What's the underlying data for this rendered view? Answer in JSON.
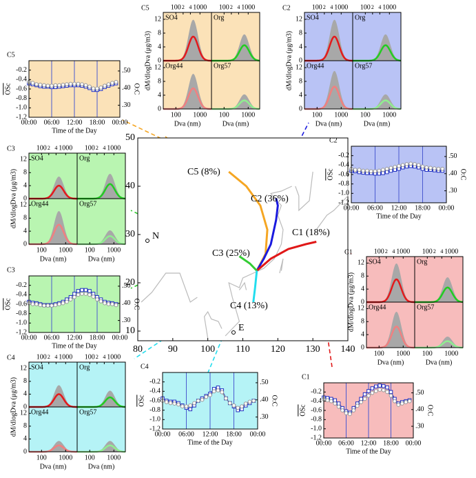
{
  "chart_data": [
    {
      "type": "map",
      "xlim": [
        80,
        140
      ],
      "ylim": [
        8,
        50
      ],
      "xticks": [
        80,
        90,
        100,
        110,
        120,
        130,
        140
      ],
      "yticks": [
        10,
        20,
        30,
        40,
        50
      ],
      "series": [
        {
          "name": "C5 (8%)",
          "color": "#f5a623",
          "x": [
            114,
            116.5,
            117,
            115,
            111,
            106
          ],
          "y": [
            22.5,
            26,
            31,
            36,
            40,
            43
          ]
        },
        {
          "name": "C2 (36%)",
          "color": "#1a1adf",
          "x": [
            114,
            116,
            118,
            119.5,
            120,
            119.5
          ],
          "y": [
            22.5,
            25,
            28,
            33,
            36,
            37.5
          ]
        },
        {
          "name": "C1 (18%)",
          "color": "#e01818",
          "x": [
            114,
            118,
            123,
            128,
            131
          ],
          "y": [
            22.5,
            25,
            27,
            28,
            28.5
          ]
        },
        {
          "name": "C3 (25%)",
          "color": "#33cc33",
          "x": [
            114,
            112,
            109
          ],
          "y": [
            22.5,
            24,
            25.5
          ]
        },
        {
          "name": "C4 (13%)",
          "color": "#22ddee",
          "x": [
            114,
            113.5,
            113
          ],
          "y": [
            22.5,
            19,
            16
          ]
        }
      ],
      "annotations": [
        "N",
        "E"
      ]
    },
    {
      "type": "size_distribution",
      "title": "C5",
      "background": "#fbe2b8",
      "xlabel": "Dva (nm)",
      "ylabel": "dM/dlogDva (μg/m3)",
      "log_x": true,
      "xlim": [
        30,
        3000
      ],
      "xticks": [
        100,
        1000
      ],
      "top_ticks": [
        100,
        {
          "value": 200,
          "label": "2"
        },
        {
          "value": 400,
          "label": "4"
        },
        1000
      ],
      "ylim": [
        0,
        14
      ],
      "yticks": [
        0,
        4,
        8,
        12
      ],
      "series": [
        {
          "name": "SO4",
          "color": "#e31a1c",
          "peak": 7
        },
        {
          "name": "Org",
          "color": "#22cc22",
          "peak": 4.5
        },
        {
          "name": "Org44",
          "color": "#f08080",
          "peak": 6
        },
        {
          "name": "Org57",
          "color": "#90ee90",
          "peak": 2.5
        }
      ]
    },
    {
      "type": "line",
      "title": "C5",
      "background": "#fbe2b8",
      "xlabel": "Time of the Day",
      "ylabel": "OSc",
      "y2label": "O:C",
      "x": [
        0,
        1,
        2,
        3,
        4,
        5,
        6,
        7,
        8,
        9,
        10,
        11,
        12,
        13,
        14,
        15,
        16,
        17,
        18,
        19,
        20,
        21,
        22,
        23
      ],
      "xlim": [
        0,
        24
      ],
      "xticks": [
        {
          "value": 0,
          "label": "00:00"
        },
        {
          "value": 6,
          "label": "06:00"
        },
        {
          "value": 12,
          "label": "12:00"
        },
        {
          "value": 18,
          "label": "18:00"
        },
        {
          "value": 24,
          "label": "00:00"
        }
      ],
      "ylim": [
        -1.2,
        0
      ],
      "yticks": [
        -1.2,
        {
          "value": -1,
          "label": "-1.0"
        },
        -0.8,
        -0.6,
        -0.4,
        -0.2
      ],
      "y2lim": [
        0.23,
        0.56
      ],
      "y2ticks": [
        {
          "value": 0.3,
          "label": ".30"
        },
        {
          "value": 0.4,
          "label": ".40"
        },
        {
          "value": 0.5,
          "label": ".50"
        }
      ],
      "series": [
        {
          "color": "#1f2fbf",
          "marker": "square",
          "values": [
            -0.48,
            -0.5,
            -0.52,
            -0.54,
            -0.55,
            -0.55,
            -0.56,
            -0.56,
            -0.55,
            -0.54,
            -0.53,
            -0.52,
            -0.52,
            -0.52,
            -0.53,
            -0.55,
            -0.58,
            -0.62,
            -0.62,
            -0.6,
            -0.56,
            -0.53,
            -0.5,
            -0.48
          ]
        },
        {
          "color": "#999999",
          "marker": "circle",
          "values": [
            -0.45,
            -0.47,
            -0.5,
            -0.51,
            -0.52,
            -0.53,
            -0.53,
            -0.52,
            -0.52,
            -0.51,
            -0.5,
            -0.49,
            -0.49,
            -0.49,
            -0.5,
            -0.52,
            -0.55,
            -0.59,
            -0.59,
            -0.57,
            -0.53,
            -0.5,
            -0.47,
            -0.45
          ]
        }
      ]
    },
    {
      "type": "size_distribution",
      "title": "C2",
      "background": "#b9c3f5",
      "xlabel": "Dva (nm)",
      "ylabel": "dM/dlogDva (μg/m3)",
      "log_x": true,
      "xlim": [
        30,
        3000
      ],
      "xticks": [
        100,
        1000
      ],
      "top_ticks": [
        100,
        {
          "value": 200,
          "label": "2"
        },
        {
          "value": 400,
          "label": "4"
        },
        1000
      ],
      "ylim": [
        0,
        14
      ],
      "yticks": [
        0,
        4,
        8,
        12
      ],
      "series": [
        {
          "name": "SO4",
          "color": "#e31a1c",
          "peak": 7
        },
        {
          "name": "Org",
          "color": "#22cc22",
          "peak": 4.5
        },
        {
          "name": "Org44",
          "color": "#f08080",
          "peak": 6.5
        },
        {
          "name": "Org57",
          "color": "#90ee90",
          "peak": 2.5
        }
      ]
    },
    {
      "type": "line",
      "title": "C2",
      "background": "#b9c3f5",
      "xlabel": "Time of the Day",
      "ylabel": "OSc",
      "y2label": "O:C",
      "x": [
        0,
        1,
        2,
        3,
        4,
        5,
        6,
        7,
        8,
        9,
        10,
        11,
        12,
        13,
        14,
        15,
        16,
        17,
        18,
        19,
        20,
        21,
        22,
        23
      ],
      "xlim": [
        0,
        24
      ],
      "xticks": [
        {
          "value": 0,
          "label": "00:00"
        },
        {
          "value": 6,
          "label": "06:00"
        },
        {
          "value": 12,
          "label": "12:00"
        },
        {
          "value": 18,
          "label": "18:00"
        },
        {
          "value": 24,
          "label": "00:00"
        }
      ],
      "ylim": [
        -1.2,
        0
      ],
      "yticks": [
        -1.2,
        {
          "value": -1,
          "label": "-1.0"
        },
        -0.8,
        -0.6,
        -0.4,
        -0.2
      ],
      "y2lim": [
        0.23,
        0.56
      ],
      "y2ticks": [
        {
          "value": 0.3,
          "label": ".30"
        },
        {
          "value": 0.4,
          "label": ".40"
        },
        {
          "value": 0.5,
          "label": ".50"
        }
      ],
      "series": [
        {
          "color": "#1f2fbf",
          "marker": "square",
          "values": [
            -0.52,
            -0.53,
            -0.55,
            -0.56,
            -0.57,
            -0.57,
            -0.58,
            -0.58,
            -0.57,
            -0.55,
            -0.52,
            -0.5,
            -0.48,
            -0.45,
            -0.43,
            -0.42,
            -0.43,
            -0.45,
            -0.48,
            -0.5,
            -0.5,
            -0.51,
            -0.52,
            -0.52
          ]
        },
        {
          "color": "#999999",
          "marker": "circle",
          "values": [
            -0.48,
            -0.5,
            -0.5,
            -0.52,
            -0.52,
            -0.53,
            -0.53,
            -0.52,
            -0.5,
            -0.48,
            -0.46,
            -0.44,
            -0.42,
            -0.4,
            -0.38,
            -0.37,
            -0.38,
            -0.4,
            -0.43,
            -0.45,
            -0.46,
            -0.47,
            -0.48,
            -0.48
          ]
        }
      ]
    },
    {
      "type": "size_distribution",
      "title": "C3",
      "background": "#b9f5b1",
      "xlabel": "Dva (nm)",
      "ylabel": "dM/dlogDva (μg/m3)",
      "log_x": true,
      "xlim": [
        30,
        3000
      ],
      "xticks": [
        100,
        1000
      ],
      "top_ticks": [
        100,
        {
          "value": 200,
          "label": "2"
        },
        {
          "value": 400,
          "label": "4"
        },
        1000
      ],
      "ylim": [
        0,
        14
      ],
      "yticks": [
        0,
        4,
        8,
        12
      ],
      "series": [
        {
          "name": "SO4",
          "color": "#e31a1c",
          "peak": 4
        },
        {
          "name": "Org",
          "color": "#22cc22",
          "peak": 4.5
        },
        {
          "name": "Org44",
          "color": "#f08080",
          "peak": 6
        },
        {
          "name": "Org57",
          "color": "#90ee90",
          "peak": 2.5
        }
      ]
    },
    {
      "type": "line",
      "title": "C3",
      "background": "#b9f5b1",
      "xlabel": "Time of the Day",
      "ylabel": "OSc",
      "y2label": "O:C",
      "x": [
        0,
        1,
        2,
        3,
        4,
        5,
        6,
        7,
        8,
        9,
        10,
        11,
        12,
        13,
        14,
        15,
        16,
        17,
        18,
        19,
        20,
        21,
        22,
        23
      ],
      "xlim": [
        0,
        24
      ],
      "xticks": [
        {
          "value": 0,
          "label": "00:00"
        },
        {
          "value": 6,
          "label": "06:00"
        },
        {
          "value": 12,
          "label": "12:00"
        },
        {
          "value": 18,
          "label": "18:00"
        },
        {
          "value": 24,
          "label": "00:00"
        }
      ],
      "ylim": [
        -1.2,
        0
      ],
      "yticks": [
        -1.2,
        {
          "value": -1,
          "label": "-1.0"
        },
        -0.8,
        -0.6,
        -0.4,
        -0.2
      ],
      "y2lim": [
        0.23,
        0.56
      ],
      "y2ticks": [
        {
          "value": 0.3,
          "label": ".30"
        },
        {
          "value": 0.4,
          "label": ".40"
        },
        {
          "value": 0.5,
          "label": ".50"
        }
      ],
      "series": [
        {
          "color": "#1f2fbf",
          "marker": "square",
          "values": [
            -0.55,
            -0.57,
            -0.58,
            -0.6,
            -0.62,
            -0.62,
            -0.62,
            -0.6,
            -0.58,
            -0.55,
            -0.5,
            -0.45,
            -0.38,
            -0.32,
            -0.3,
            -0.3,
            -0.32,
            -0.38,
            -0.45,
            -0.5,
            -0.55,
            -0.57,
            -0.58,
            -0.6
          ]
        },
        {
          "color": "#999999",
          "marker": "circle",
          "values": [
            -0.58,
            -0.6,
            -0.6,
            -0.62,
            -0.63,
            -0.63,
            -0.63,
            -0.62,
            -0.6,
            -0.58,
            -0.55,
            -0.5,
            -0.45,
            -0.4,
            -0.38,
            -0.38,
            -0.4,
            -0.44,
            -0.5,
            -0.54,
            -0.58,
            -0.6,
            -0.6,
            -0.62
          ]
        }
      ]
    },
    {
      "type": "size_distribution",
      "title": "C1",
      "background": "#f7bcbc",
      "xlabel": "Dva (nm)",
      "ylabel": "dM/dlogDva (μg/m3)",
      "log_x": true,
      "xlim": [
        30,
        3000
      ],
      "xticks": [
        100,
        1000
      ],
      "top_ticks": [
        100,
        {
          "value": 200,
          "label": "2"
        },
        {
          "value": 400,
          "label": "4"
        },
        1000
      ],
      "ylim": [
        0,
        14
      ],
      "yticks": [
        0,
        4,
        8,
        12
      ],
      "series": [
        {
          "name": "SO4",
          "color": "#e31a1c",
          "peak": 7
        },
        {
          "name": "Org",
          "color": "#22cc22",
          "peak": 4.5
        },
        {
          "name": "Org44",
          "color": "#f08080",
          "peak": 6.5
        },
        {
          "name": "Org57",
          "color": "#90ee90",
          "peak": 2
        }
      ]
    },
    {
      "type": "line",
      "title": "C1",
      "background": "#f7bcbc",
      "xlabel": "Time of the Day",
      "ylabel": "OSc",
      "y2label": "O:C",
      "x": [
        0,
        1,
        2,
        3,
        4,
        5,
        6,
        7,
        8,
        9,
        10,
        11,
        12,
        13,
        14,
        15,
        16,
        17,
        18,
        19,
        20,
        21,
        22,
        23
      ],
      "xlim": [
        0,
        24
      ],
      "xticks": [
        {
          "value": 0,
          "label": "00:00"
        },
        {
          "value": 6,
          "label": "06:00"
        },
        {
          "value": 12,
          "label": "12:00"
        },
        {
          "value": 18,
          "label": "18:00"
        },
        {
          "value": 24,
          "label": "00:00"
        }
      ],
      "ylim": [
        -1.2,
        0
      ],
      "yticks": [
        -1.2,
        {
          "value": -1,
          "label": "-1.0"
        },
        -0.8,
        -0.6,
        -0.4,
        -0.2
      ],
      "y2lim": [
        0.23,
        0.56
      ],
      "y2ticks": [
        {
          "value": 0.3,
          "label": ".30"
        },
        {
          "value": 0.4,
          "label": ".40"
        },
        {
          "value": 0.5,
          "label": ".50"
        }
      ],
      "series": [
        {
          "color": "#1f2fbf",
          "marker": "square",
          "values": [
            -0.32,
            -0.33,
            -0.35,
            -0.38,
            -0.45,
            -0.55,
            -0.62,
            -0.65,
            -0.55,
            -0.45,
            -0.35,
            -0.25,
            -0.18,
            -0.12,
            -0.08,
            -0.06,
            -0.07,
            -0.1,
            -0.2,
            -0.35,
            -0.45,
            -0.42,
            -0.4,
            -0.38
          ]
        },
        {
          "color": "#999999",
          "marker": "circle",
          "values": [
            -0.36,
            -0.38,
            -0.4,
            -0.45,
            -0.52,
            -0.6,
            -0.66,
            -0.68,
            -0.6,
            -0.5,
            -0.42,
            -0.35,
            -0.28,
            -0.22,
            -0.18,
            -0.15,
            -0.16,
            -0.2,
            -0.28,
            -0.4,
            -0.48,
            -0.45,
            -0.42,
            -0.4
          ]
        }
      ]
    },
    {
      "type": "size_distribution",
      "title": "C4",
      "background": "#b5f3f6",
      "xlabel": "Dva (nm)",
      "ylabel": "dM/dlogDva (μg/m3)",
      "log_x": true,
      "xlim": [
        30,
        3000
      ],
      "xticks": [
        100,
        1000
      ],
      "top_ticks": [
        100,
        {
          "value": 200,
          "label": "2"
        },
        {
          "value": 400,
          "label": "4"
        },
        1000
      ],
      "ylim": [
        0,
        14
      ],
      "yticks": [
        0,
        4,
        8,
        12
      ],
      "series": [
        {
          "name": "SO4",
          "color": "#e31a1c",
          "peak": 4
        },
        {
          "name": "Org",
          "color": "#22cc22",
          "peak": 3
        },
        {
          "name": "Org44",
          "color": "#f08080",
          "peak": 2
        },
        {
          "name": "Org57",
          "color": "#90ee90",
          "peak": 2
        }
      ]
    },
    {
      "type": "line",
      "title": "C4",
      "background": "#b5f3f6",
      "xlabel": "Time of the Day",
      "ylabel": "OSc",
      "y2label": "O:C",
      "x": [
        0,
        1,
        2,
        3,
        4,
        5,
        6,
        7,
        8,
        9,
        10,
        11,
        12,
        13,
        14,
        15,
        16,
        17,
        18,
        19,
        20,
        21,
        22,
        23
      ],
      "xlim": [
        0,
        24
      ],
      "xticks": [
        {
          "value": 0,
          "label": "00:00"
        },
        {
          "value": 6,
          "label": "06:00"
        },
        {
          "value": 12,
          "label": "12:00"
        },
        {
          "value": 18,
          "label": "18:00"
        },
        {
          "value": 24,
          "label": "00:00"
        }
      ],
      "ylim": [
        -1.2,
        0
      ],
      "yticks": [
        -1.2,
        {
          "value": -1,
          "label": "-1.0"
        },
        -0.8,
        -0.6,
        -0.4,
        -0.2
      ],
      "y2lim": [
        0.23,
        0.56
      ],
      "y2ticks": [
        {
          "value": 0.3,
          "label": ".30"
        },
        {
          "value": 0.4,
          "label": ".40"
        },
        {
          "value": 0.5,
          "label": ".50"
        }
      ],
      "series": [
        {
          "color": "#1f2fbf",
          "marker": "square",
          "values": [
            -0.55,
            -0.6,
            -0.62,
            -0.62,
            -0.65,
            -0.7,
            -0.75,
            -0.78,
            -0.7,
            -0.6,
            -0.55,
            -0.5,
            -0.45,
            -0.35,
            -0.32,
            -0.38,
            -0.55,
            -0.65,
            -0.72,
            -0.8,
            -0.78,
            -0.7,
            -0.65,
            -0.6
          ]
        },
        {
          "color": "#999999",
          "marker": "circle",
          "values": [
            -0.6,
            -0.63,
            -0.65,
            -0.66,
            -0.68,
            -0.72,
            -0.72,
            -0.7,
            -0.65,
            -0.6,
            -0.58,
            -0.52,
            -0.48,
            -0.4,
            -0.38,
            -0.42,
            -0.55,
            -0.65,
            -0.7,
            -0.75,
            -0.72,
            -0.66,
            -0.62,
            -0.6
          ]
        }
      ]
    }
  ]
}
